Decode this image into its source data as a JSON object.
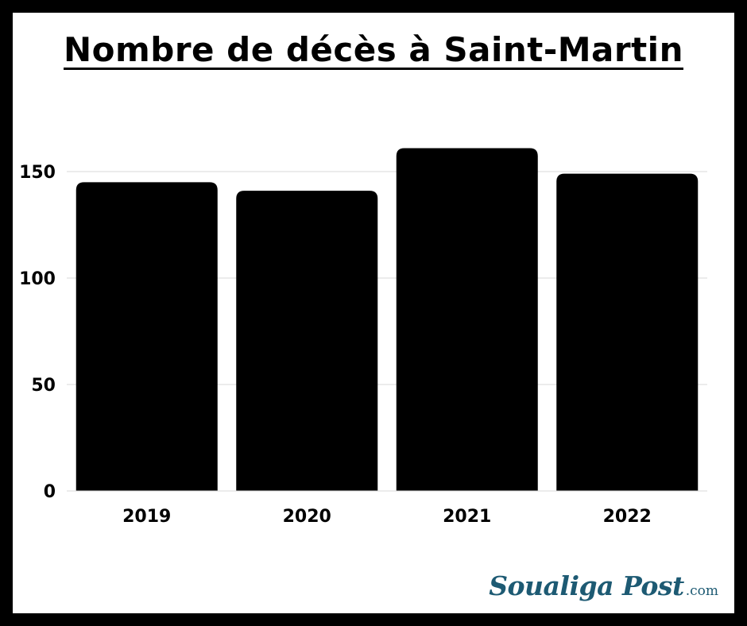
{
  "page": {
    "border_color": "#000000",
    "background_color": "#ffffff"
  },
  "chart_data": {
    "type": "bar",
    "title": "Nombre de décès à Saint-Martin",
    "categories": [
      "2019",
      "2020",
      "2021",
      "2022"
    ],
    "values": [
      145,
      141,
      161,
      149
    ],
    "ylim": [
      0,
      180
    ],
    "yticks": [
      0,
      50,
      100,
      150
    ],
    "xlabel": "",
    "ylabel": "",
    "grid": true,
    "legend": "none",
    "bar_color": "#000000",
    "grid_color": "#d9d9d9"
  },
  "logo": {
    "text": "Soualiga Post",
    "suffix": ".com",
    "color": "#1d5a73"
  }
}
